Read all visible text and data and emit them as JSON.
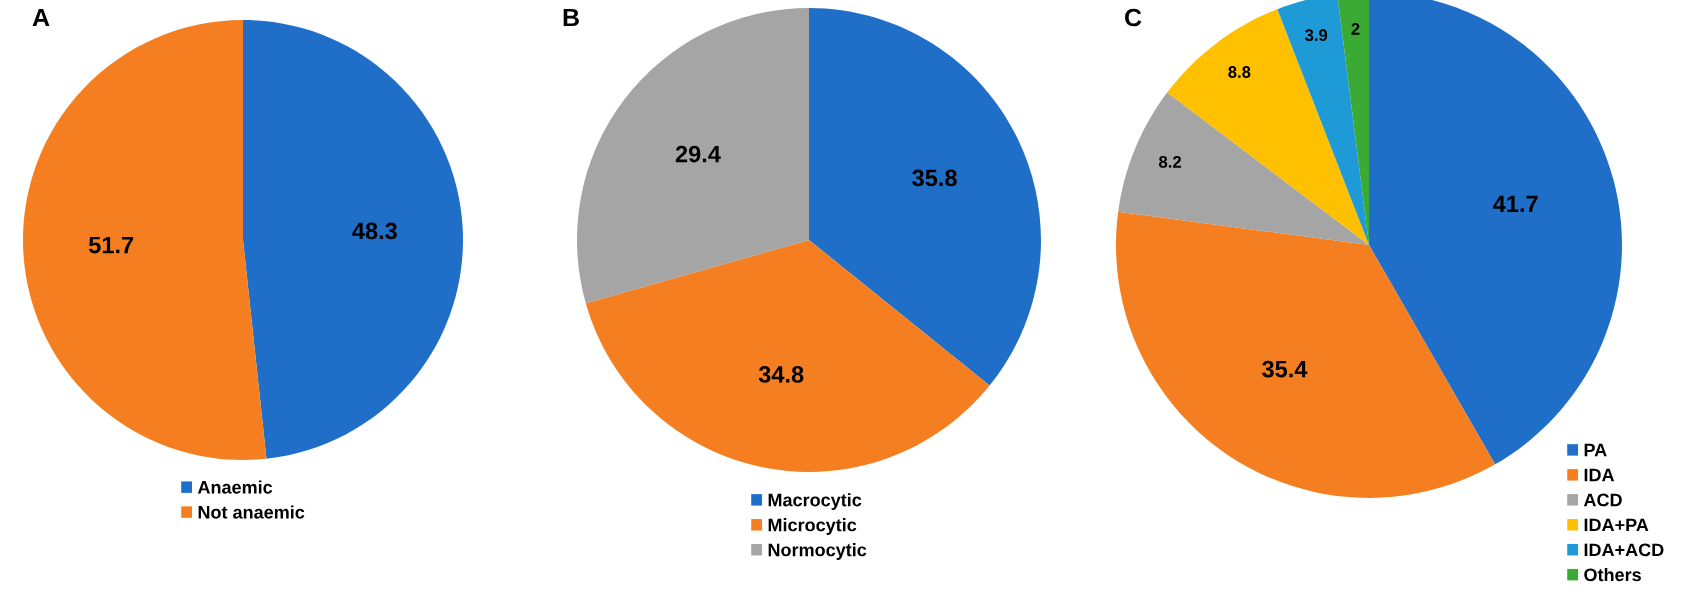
{
  "chart_data": [
    {
      "type": "pie",
      "title": "A",
      "categories": [
        "Anaemic",
        "Not anaemic"
      ],
      "values": [
        48.3,
        51.7
      ],
      "colors": [
        "#1f6fc8",
        "#f57f20"
      ],
      "data_labels": true,
      "legend": "bottom"
    },
    {
      "type": "pie",
      "title": "B",
      "categories": [
        "Macrocytic",
        "Microcytic",
        "Normocytic"
      ],
      "values": [
        35.8,
        34.8,
        29.4
      ],
      "colors": [
        "#1f6fc8",
        "#f57f20",
        "#a5a5a5"
      ],
      "data_labels": true,
      "legend": "bottom"
    },
    {
      "type": "pie",
      "title": "C",
      "categories": [
        "PA",
        "IDA",
        "ACD",
        "IDA+PA",
        "IDA+ACD",
        "Others"
      ],
      "values": [
        41.7,
        35.4,
        8.2,
        8.8,
        3.9,
        2
      ],
      "colors": [
        "#1f6fc8",
        "#f57f20",
        "#a5a5a5",
        "#ffc000",
        "#1e9ad6",
        "#3aaa35"
      ],
      "data_labels": true,
      "legend": "bottom right"
    }
  ]
}
